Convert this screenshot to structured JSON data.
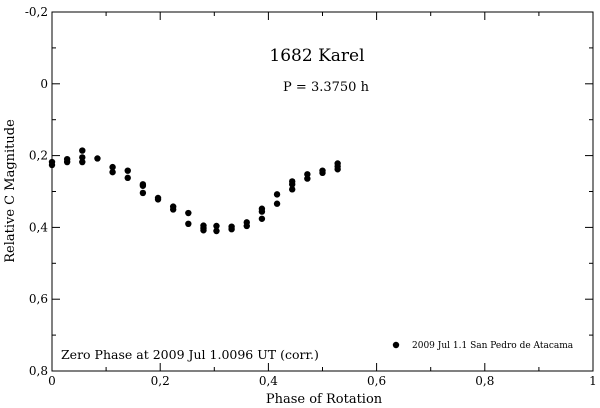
{
  "chart_data": {
    "type": "scatter",
    "title": "1682 Karel",
    "subtitle": "P = 3.3750 h",
    "xlabel": "Phase of Rotation",
    "ylabel": "Relative C Magnitude",
    "xlim": [
      0,
      1
    ],
    "ylim": [
      -0.2,
      0.8
    ],
    "y_inverted": true,
    "x_ticks": [
      {
        "value": 0,
        "label": "0"
      },
      {
        "value": 0.2,
        "label": "0,2"
      },
      {
        "value": 0.4,
        "label": "0,4"
      },
      {
        "value": 0.6,
        "label": "0,6"
      },
      {
        "value": 0.8,
        "label": "0,8"
      },
      {
        "value": 1,
        "label": "1"
      }
    ],
    "y_ticks": [
      {
        "value": -0.2,
        "label": "-0,2"
      },
      {
        "value": 0,
        "label": "0"
      },
      {
        "value": 0.2,
        "label": "0,2"
      },
      {
        "value": 0.4,
        "label": "0,4"
      },
      {
        "value": 0.6,
        "label": "0,6"
      },
      {
        "value": 0.8,
        "label": "0,8"
      }
    ],
    "annotation": "Zero Phase at 2009 Jul 1.0096 UT (corr.)",
    "legend_position": "bottom-right",
    "grid": false,
    "series": [
      {
        "name": "2009 Jul 1.1 San Pedro de Atacama",
        "color": "#000000",
        "points": [
          {
            "x": 0.0,
            "y": 0.218
          },
          {
            "x": 0.0,
            "y": 0.226
          },
          {
            "x": 0.028,
            "y": 0.21
          },
          {
            "x": 0.028,
            "y": 0.218
          },
          {
            "x": 0.056,
            "y": 0.186
          },
          {
            "x": 0.056,
            "y": 0.205
          },
          {
            "x": 0.056,
            "y": 0.218
          },
          {
            "x": 0.084,
            "y": 0.208
          },
          {
            "x": 0.112,
            "y": 0.232
          },
          {
            "x": 0.112,
            "y": 0.246
          },
          {
            "x": 0.14,
            "y": 0.242
          },
          {
            "x": 0.14,
            "y": 0.262
          },
          {
            "x": 0.168,
            "y": 0.28
          },
          {
            "x": 0.168,
            "y": 0.284
          },
          {
            "x": 0.168,
            "y": 0.304
          },
          {
            "x": 0.196,
            "y": 0.318
          },
          {
            "x": 0.196,
            "y": 0.322
          },
          {
            "x": 0.224,
            "y": 0.342
          },
          {
            "x": 0.224,
            "y": 0.35
          },
          {
            "x": 0.252,
            "y": 0.36
          },
          {
            "x": 0.252,
            "y": 0.39
          },
          {
            "x": 0.28,
            "y": 0.395
          },
          {
            "x": 0.28,
            "y": 0.402
          },
          {
            "x": 0.28,
            "y": 0.408
          },
          {
            "x": 0.304,
            "y": 0.396
          },
          {
            "x": 0.304,
            "y": 0.41
          },
          {
            "x": 0.332,
            "y": 0.398
          },
          {
            "x": 0.332,
            "y": 0.405
          },
          {
            "x": 0.36,
            "y": 0.386
          },
          {
            "x": 0.36,
            "y": 0.396
          },
          {
            "x": 0.388,
            "y": 0.348
          },
          {
            "x": 0.388,
            "y": 0.356
          },
          {
            "x": 0.388,
            "y": 0.376
          },
          {
            "x": 0.416,
            "y": 0.308
          },
          {
            "x": 0.416,
            "y": 0.334
          },
          {
            "x": 0.444,
            "y": 0.272
          },
          {
            "x": 0.444,
            "y": 0.28
          },
          {
            "x": 0.444,
            "y": 0.294
          },
          {
            "x": 0.472,
            "y": 0.252
          },
          {
            "x": 0.472,
            "y": 0.264
          },
          {
            "x": 0.5,
            "y": 0.242
          },
          {
            "x": 0.5,
            "y": 0.248
          },
          {
            "x": 0.528,
            "y": 0.222
          },
          {
            "x": 0.528,
            "y": 0.23
          },
          {
            "x": 0.528,
            "y": 0.238
          }
        ]
      }
    ]
  }
}
